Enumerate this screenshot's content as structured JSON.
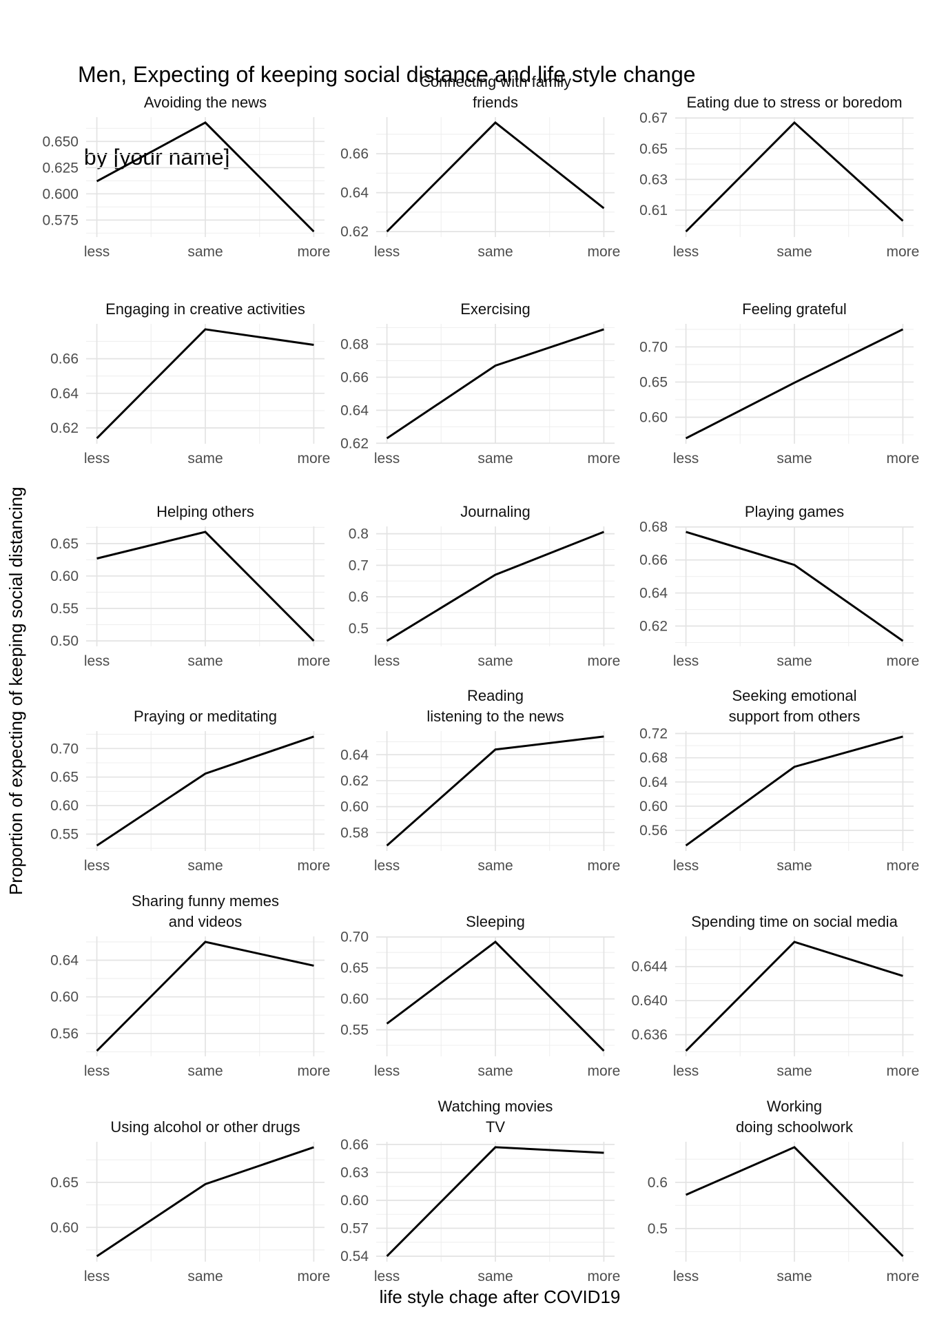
{
  "title": {
    "line1": "Men, Expecting of keeping social distance and life style change",
    "line2": " by [your name]"
  },
  "axes": {
    "x_title": "life style chage after COVID19",
    "y_title": "Proportion of expecting of keeping social distancing",
    "x_categories": [
      "less",
      "same",
      "more"
    ]
  },
  "colors": {
    "background": "#ffffff",
    "line": "#000000",
    "grid_major": "#e3e3e3",
    "grid_minor": "#efefef",
    "tick_text": "#4d4d4d",
    "facet_title_text": "#111111",
    "title_text": "#000000"
  },
  "chart_data": {
    "type": "line",
    "layout": {
      "rows": 6,
      "cols": 3,
      "free_y": true,
      "grid": true,
      "legend": "none"
    },
    "x_categories": [
      "less",
      "same",
      "more"
    ],
    "facets": [
      {
        "title_lines": [
          "Avoiding the news"
        ],
        "categories": [
          "less",
          "same",
          "more"
        ],
        "values": [
          0.612,
          0.668,
          0.564
        ],
        "yticks": [
          0.575,
          0.6,
          0.625,
          0.65
        ],
        "ytick_labels": [
          "0.575",
          "0.600",
          "0.625",
          "0.650"
        ]
      },
      {
        "title_lines": [
          "Connecting with family",
          "friends"
        ],
        "categories": [
          "less",
          "same",
          "more"
        ],
        "values": [
          0.62,
          0.676,
          0.632
        ],
        "yticks": [
          0.62,
          0.64,
          0.66
        ],
        "ytick_labels": [
          "0.62",
          "0.64",
          "0.66"
        ]
      },
      {
        "title_lines": [
          "Eating due to stress or boredom"
        ],
        "categories": [
          "less",
          "same",
          "more"
        ],
        "values": [
          0.596,
          0.667,
          0.603
        ],
        "yticks": [
          0.61,
          0.63,
          0.65,
          0.67
        ],
        "ytick_labels": [
          "0.61",
          "0.63",
          "0.65",
          "0.67"
        ]
      },
      {
        "title_lines": [
          "Engaging in creative activities"
        ],
        "categories": [
          "less",
          "same",
          "more"
        ],
        "values": [
          0.614,
          0.677,
          0.668
        ],
        "yticks": [
          0.62,
          0.64,
          0.66
        ],
        "ytick_labels": [
          "0.62",
          "0.64",
          "0.66"
        ]
      },
      {
        "title_lines": [
          "Exercising"
        ],
        "categories": [
          "less",
          "same",
          "more"
        ],
        "values": [
          0.623,
          0.667,
          0.689
        ],
        "yticks": [
          0.62,
          0.64,
          0.66,
          0.68
        ],
        "ytick_labels": [
          "0.62",
          "0.64",
          "0.66",
          "0.68"
        ]
      },
      {
        "title_lines": [
          "Feeling grateful"
        ],
        "categories": [
          "less",
          "same",
          "more"
        ],
        "values": [
          0.57,
          0.649,
          0.725
        ],
        "yticks": [
          0.6,
          0.65,
          0.7
        ],
        "ytick_labels": [
          "0.60",
          "0.65",
          "0.70"
        ]
      },
      {
        "title_lines": [
          "Helping others"
        ],
        "categories": [
          "less",
          "same",
          "more"
        ],
        "values": [
          0.627,
          0.668,
          0.5
        ],
        "yticks": [
          0.5,
          0.55,
          0.6,
          0.65
        ],
        "ytick_labels": [
          "0.50",
          "0.55",
          "0.60",
          "0.65"
        ]
      },
      {
        "title_lines": [
          "Journaling"
        ],
        "categories": [
          "less",
          "same",
          "more"
        ],
        "values": [
          0.46,
          0.67,
          0.806
        ],
        "yticks": [
          0.5,
          0.6,
          0.7,
          0.8
        ],
        "ytick_labels": [
          "0.5",
          "0.6",
          "0.7",
          "0.8"
        ]
      },
      {
        "title_lines": [
          "Playing games"
        ],
        "categories": [
          "less",
          "same",
          "more"
        ],
        "values": [
          0.677,
          0.657,
          0.611
        ],
        "yticks": [
          0.62,
          0.64,
          0.66,
          0.68
        ],
        "ytick_labels": [
          "0.62",
          "0.64",
          "0.66",
          "0.68"
        ]
      },
      {
        "title_lines": [
          "Praying or meditating"
        ],
        "categories": [
          "less",
          "same",
          "more"
        ],
        "values": [
          0.53,
          0.656,
          0.721
        ],
        "yticks": [
          0.55,
          0.6,
          0.65,
          0.7
        ],
        "ytick_labels": [
          "0.55",
          "0.60",
          "0.65",
          "0.70"
        ]
      },
      {
        "title_lines": [
          "Reading",
          "listening to the news"
        ],
        "categories": [
          "less",
          "same",
          "more"
        ],
        "values": [
          0.57,
          0.644,
          0.654
        ],
        "yticks": [
          0.58,
          0.6,
          0.62,
          0.64
        ],
        "ytick_labels": [
          "0.58",
          "0.60",
          "0.62",
          "0.64"
        ]
      },
      {
        "title_lines": [
          "Seeking emotional",
          "support from others"
        ],
        "categories": [
          "less",
          "same",
          "more"
        ],
        "values": [
          0.535,
          0.665,
          0.715
        ],
        "yticks": [
          0.56,
          0.6,
          0.64,
          0.68,
          0.72
        ],
        "ytick_labels": [
          "0.56",
          "0.60",
          "0.64",
          "0.68",
          "0.72"
        ]
      },
      {
        "title_lines": [
          "Sharing funny memes",
          "and videos"
        ],
        "categories": [
          "less",
          "same",
          "more"
        ],
        "values": [
          0.541,
          0.66,
          0.634
        ],
        "yticks": [
          0.56,
          0.6,
          0.64
        ],
        "ytick_labels": [
          "0.56",
          "0.60",
          "0.64"
        ]
      },
      {
        "title_lines": [
          "Sleeping"
        ],
        "categories": [
          "less",
          "same",
          "more"
        ],
        "values": [
          0.56,
          0.692,
          0.516
        ],
        "yticks": [
          0.55,
          0.6,
          0.65,
          0.7
        ],
        "ytick_labels": [
          "0.55",
          "0.60",
          "0.65",
          "0.70"
        ]
      },
      {
        "title_lines": [
          "Spending time on social media"
        ],
        "categories": [
          "less",
          "same",
          "more"
        ],
        "values": [
          0.6341,
          0.6469,
          0.6429
        ],
        "yticks": [
          0.636,
          0.64,
          0.644
        ],
        "ytick_labels": [
          "0.636",
          "0.640",
          "0.644"
        ]
      },
      {
        "title_lines": [
          "Using alcohol or other drugs"
        ],
        "categories": [
          "less",
          "same",
          "more"
        ],
        "values": [
          0.568,
          0.648,
          0.689
        ],
        "yticks": [
          0.6,
          0.65
        ],
        "ytick_labels": [
          "0.60",
          "0.65"
        ]
      },
      {
        "title_lines": [
          "Watching movies",
          "TV"
        ],
        "categories": [
          "less",
          "same",
          "more"
        ],
        "values": [
          0.54,
          0.657,
          0.651
        ],
        "yticks": [
          0.54,
          0.57,
          0.6,
          0.63,
          0.66
        ],
        "ytick_labels": [
          "0.54",
          "0.57",
          "0.60",
          "0.63",
          "0.66"
        ]
      },
      {
        "title_lines": [
          "Working",
          "doing schoolwork"
        ],
        "categories": [
          "less",
          "same",
          "more"
        ],
        "values": [
          0.573,
          0.676,
          0.44
        ],
        "yticks": [
          0.5,
          0.6
        ],
        "ytick_labels": [
          "0.5",
          "0.6"
        ]
      }
    ]
  }
}
